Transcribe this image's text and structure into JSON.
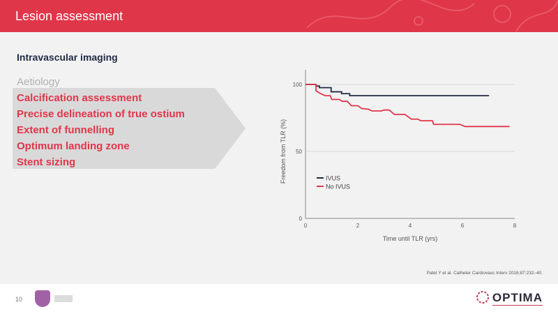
{
  "header": {
    "title": "Lesion assessment"
  },
  "subtitle": "Intravascular imaging",
  "list": {
    "dim_item": "Aetiology",
    "items": [
      "Calcification assessment",
      "Precise delineation of true ostium",
      "Extent of funnelling",
      "Optimum landing zone",
      "Stent sizing"
    ]
  },
  "chart_data": {
    "type": "line",
    "title": "",
    "xlabel": "Time until TLR (yrs)",
    "ylabel": "Freedom from TLR (%)",
    "xlim": [
      0,
      8
    ],
    "ylim": [
      0,
      100
    ],
    "xticks": [
      "0",
      "2",
      "4",
      "6",
      "8"
    ],
    "yticks": [
      "0",
      "50",
      "100"
    ],
    "grid": "horizontal",
    "legend": "center-left",
    "series": [
      {
        "name": "IVUS",
        "color": "#1f2a44",
        "x": [
          0,
          0.4,
          0.4,
          0.53,
          0.53,
          0.98,
          0.98,
          1.38,
          1.38,
          1.69,
          1.69,
          7.02
        ],
        "y": [
          100,
          100,
          98.8,
          98.8,
          97.6,
          97.6,
          94.5,
          94.5,
          93.1,
          93.1,
          91.6,
          91.6
        ]
      },
      {
        "name": "No IVUS",
        "color": "#e0364a",
        "x": [
          0,
          0.4,
          0.4,
          0.5,
          0.6,
          0.75,
          0.95,
          1.0,
          1.3,
          1.4,
          1.6,
          1.75,
          2.0,
          2.15,
          2.4,
          2.55,
          2.9,
          3.0,
          3.2,
          3.4,
          3.8,
          4.05,
          4.3,
          4.4,
          4.85,
          4.9,
          5.9,
          6.1,
          7.8
        ],
        "y": [
          100,
          100,
          95.3,
          94,
          93,
          91.6,
          91.6,
          88.8,
          88.8,
          87.4,
          87.4,
          84.1,
          84.1,
          82,
          81.5,
          80.2,
          80.2,
          80.9,
          80.9,
          77.6,
          77.6,
          74.1,
          74.1,
          72.9,
          72.9,
          70.2,
          70.2,
          68.6,
          68.6
        ]
      }
    ]
  },
  "citation": "Patel Y et al. Catheter Cardiovasc Interv 2016;87:232–40.",
  "footer": {
    "page": "10",
    "logo_text": "OPTIMA"
  }
}
